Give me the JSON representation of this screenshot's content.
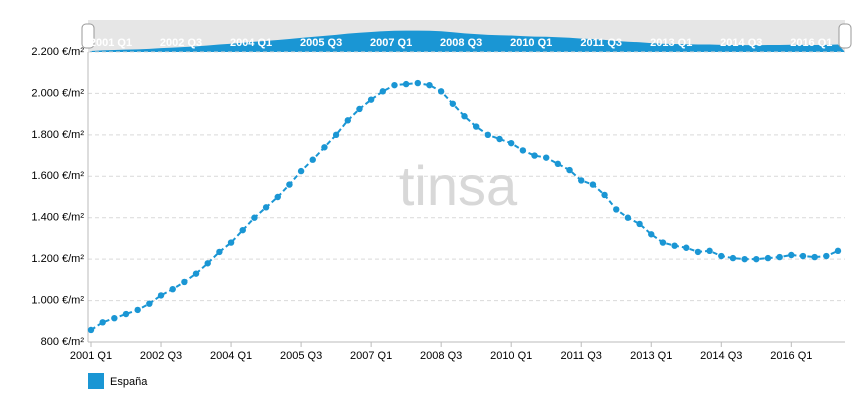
{
  "chart_data": {
    "type": "line",
    "categories": [
      "2001 Q1",
      null,
      null,
      null,
      null,
      null,
      "2002 Q3",
      null,
      null,
      null,
      null,
      null,
      "2004 Q1",
      null,
      null,
      null,
      null,
      null,
      "2005 Q3",
      null,
      null,
      null,
      null,
      null,
      "2007 Q1",
      null,
      null,
      null,
      null,
      null,
      "2008 Q3",
      null,
      null,
      null,
      null,
      null,
      "2010 Q1",
      null,
      null,
      null,
      null,
      null,
      "2011 Q3",
      null,
      null,
      null,
      null,
      null,
      "2013 Q1",
      null,
      null,
      null,
      null,
      null,
      "2014 Q3",
      null,
      null,
      null,
      null,
      null,
      "2016 Q1",
      null,
      null,
      null,
      null
    ],
    "series": [
      {
        "name": "España",
        "color": "#1a96d4",
        "values": [
          858,
          895,
          915,
          935,
          955,
          985,
          1025,
          1055,
          1090,
          1130,
          1180,
          1235,
          1280,
          1340,
          1400,
          1450,
          1500,
          1560,
          1625,
          1680,
          1740,
          1800,
          1870,
          1925,
          1970,
          2010,
          2040,
          2045,
          2050,
          2040,
          2010,
          1950,
          1890,
          1840,
          1800,
          1780,
          1760,
          1725,
          1700,
          1690,
          1660,
          1630,
          1580,
          1560,
          1510,
          1440,
          1400,
          1370,
          1320,
          1280,
          1265,
          1255,
          1235,
          1240,
          1215,
          1205,
          1200,
          1200,
          1205,
          1210,
          1220,
          1215,
          1210,
          1215,
          1240
        ]
      }
    ],
    "ylim": [
      800,
      2200
    ],
    "yticks": [
      {
        "value": 800,
        "label": "800 €/m²"
      },
      {
        "value": 1000,
        "label": "1.000 €/m²"
      },
      {
        "value": 1200,
        "label": "1.200 €/m²"
      },
      {
        "value": 1400,
        "label": "1.400 €/m²"
      },
      {
        "value": 1600,
        "label": "1.600 €/m²"
      },
      {
        "value": 1800,
        "label": "1.800 €/m²"
      },
      {
        "value": 2000,
        "label": "2.000 €/m²"
      },
      {
        "value": 2200,
        "label": "2.200 €/m²"
      }
    ],
    "grid": true,
    "watermark": "tinsa"
  }
}
